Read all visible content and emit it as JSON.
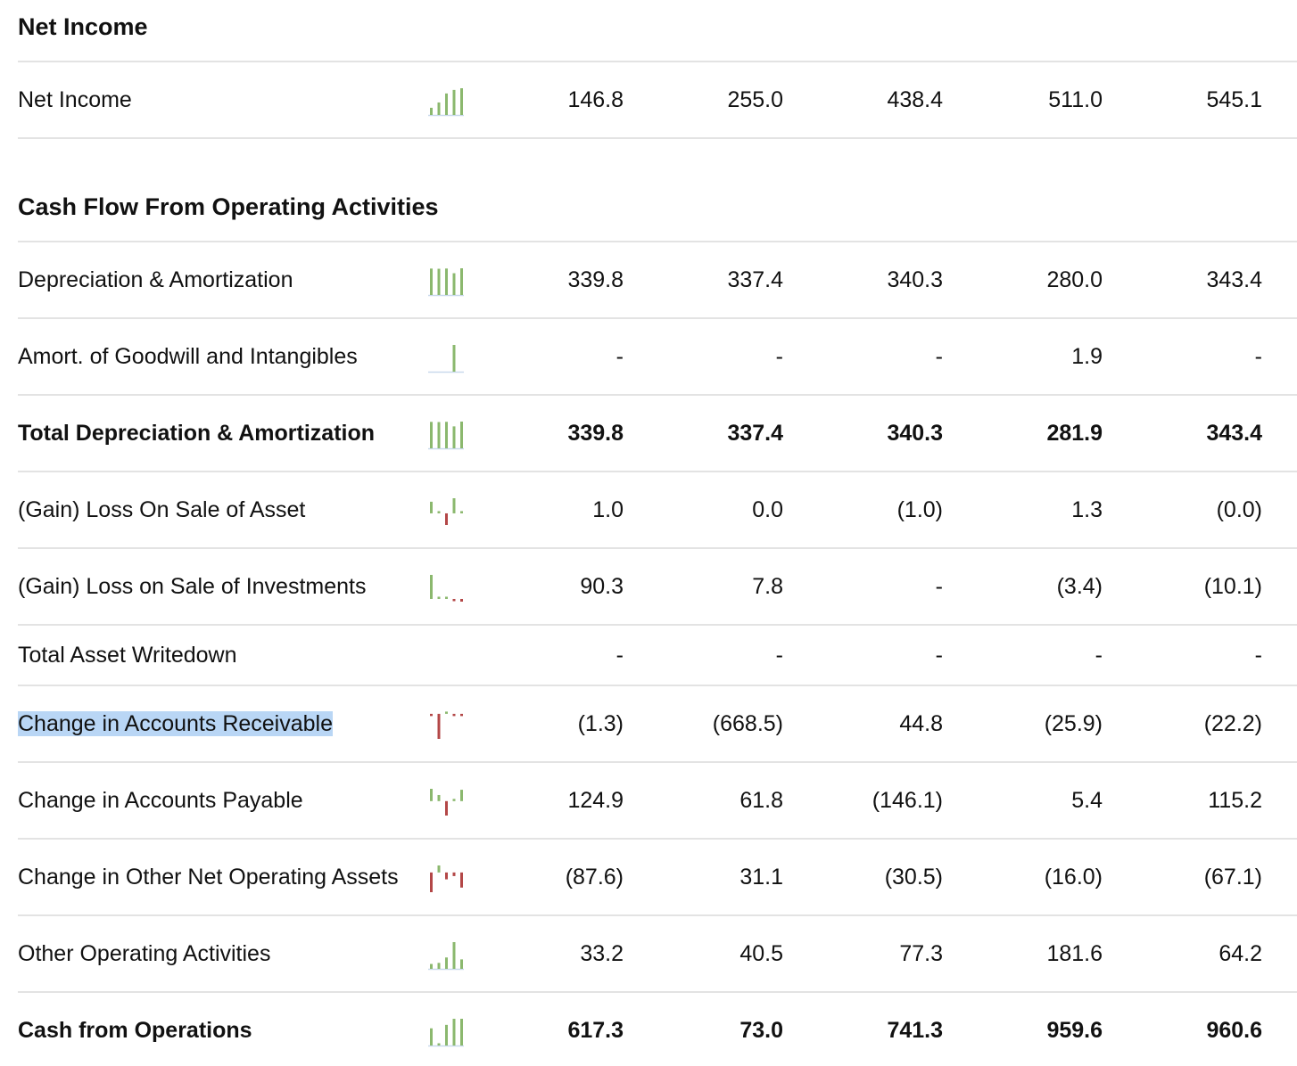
{
  "sections": [
    {
      "title": "Net Income",
      "rows": [
        {
          "label": "Net Income",
          "bold": false,
          "values": [
            "146.8",
            "255.0",
            "438.4",
            "511.0",
            "545.1"
          ],
          "spark": [
            146.8,
            255.0,
            438.4,
            511.0,
            545.1
          ]
        }
      ]
    },
    {
      "title": "Cash Flow From Operating Activities",
      "rows": [
        {
          "label": "Depreciation & Amortization",
          "bold": false,
          "values": [
            "339.8",
            "337.4",
            "340.3",
            "280.0",
            "343.4"
          ],
          "spark": [
            339.8,
            337.4,
            340.3,
            280.0,
            343.4
          ]
        },
        {
          "label": "Amort. of Goodwill and Intangibles",
          "bold": false,
          "values": [
            "-",
            "-",
            "-",
            "1.9",
            "-"
          ],
          "spark": [
            0,
            0,
            0,
            1.9,
            0
          ]
        },
        {
          "label": "Total Depreciation & Amortization",
          "bold": true,
          "values": [
            "339.8",
            "337.4",
            "340.3",
            "281.9",
            "343.4"
          ],
          "spark": [
            339.8,
            337.4,
            340.3,
            281.9,
            343.4
          ]
        },
        {
          "label": "(Gain) Loss On Sale of Asset",
          "bold": false,
          "values": [
            "1.0",
            "0.0",
            "(1.0)",
            "1.3",
            "(0.0)"
          ],
          "spark": [
            1.0,
            0.0,
            -1.0,
            1.3,
            -0.0
          ]
        },
        {
          "label": "(Gain) Loss on Sale of Investments",
          "bold": false,
          "values": [
            "90.3",
            "7.8",
            "-",
            "(3.4)",
            "(10.1)"
          ],
          "spark": [
            90.3,
            7.8,
            0,
            -3.4,
            -10.1
          ]
        },
        {
          "label": "Total Asset Writedown",
          "bold": false,
          "values": [
            "-",
            "-",
            "-",
            "-",
            "-"
          ],
          "spark": null
        },
        {
          "label": "Change in Accounts Receivable",
          "bold": false,
          "highlighted": true,
          "values": [
            "(1.3)",
            "(668.5)",
            "44.8",
            "(25.9)",
            "(22.2)"
          ],
          "spark": [
            -1.3,
            -668.5,
            44.8,
            -25.9,
            -22.2
          ]
        },
        {
          "label": "Change in Accounts Payable",
          "bold": false,
          "values": [
            "124.9",
            "61.8",
            "(146.1)",
            "5.4",
            "115.2"
          ],
          "spark": [
            124.9,
            61.8,
            -146.1,
            5.4,
            115.2
          ]
        },
        {
          "label": "Change in Other Net Operating Assets",
          "bold": false,
          "values": [
            "(87.6)",
            "31.1",
            "(30.5)",
            "(16.0)",
            "(67.1)"
          ],
          "spark": [
            -87.6,
            31.1,
            -30.5,
            -16.0,
            -67.1
          ]
        },
        {
          "label": "Other Operating Activities",
          "bold": false,
          "values": [
            "33.2",
            "40.5",
            "77.3",
            "181.6",
            "64.2"
          ],
          "spark": [
            33.2,
            40.5,
            77.3,
            181.6,
            64.2
          ]
        },
        {
          "label": "Cash from Operations",
          "bold": true,
          "values": [
            "617.3",
            "73.0",
            "741.3",
            "959.6",
            "960.6"
          ],
          "spark": [
            617.3,
            73.0,
            741.3,
            959.6,
            960.6
          ]
        }
      ]
    }
  ],
  "colors": {
    "positive": "#8bb86e",
    "negative": "#b34747",
    "baseline": "#c9d9ec",
    "rule": "#e3e3e3"
  }
}
